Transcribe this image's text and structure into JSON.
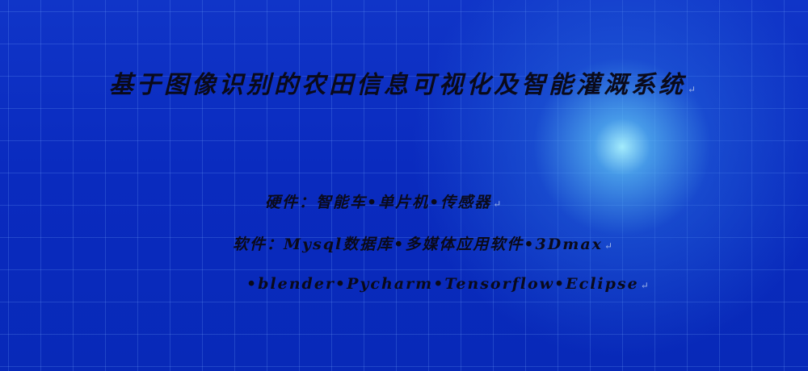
{
  "slide": {
    "title": "基于图像识别的农田信息可视化及智能灌溉系统",
    "hardware_line": "硬件：智能车•单片机•传感器",
    "software_line": "软件：Mysql数据库•多媒体应用软件•3Dmax",
    "tools_line": "•blender•Pycharm•Tensorflow•Eclipse",
    "paragraph_mark": "↵"
  },
  "colors": {
    "background": "#0b2fc4",
    "glow": "#aaf5ff",
    "text": "#0a0a1a"
  }
}
